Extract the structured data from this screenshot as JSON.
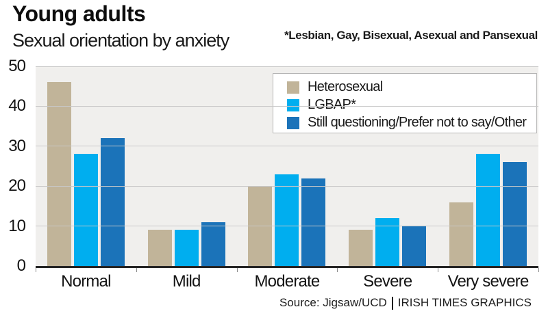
{
  "header": {
    "title": "Young adults",
    "subtitle": "Sexual orientation by anxiety",
    "note": "*Lesbian, Gay, Bisexual, Asexual and Pansexual"
  },
  "footer": {
    "source": "Source: Jigsaw/UCD",
    "credit": "IRISH TIMES GRAPHICS"
  },
  "colors": {
    "heterosexual": "#c1b499",
    "lgbap": "#00aeef",
    "questioning": "#1b73b9",
    "plot_background": "#f0efed",
    "gridline": "#c8c8c8",
    "axis_line": "#252525"
  },
  "chart_data": {
    "type": "bar",
    "title": "Young adults — Sexual orientation by anxiety",
    "categories": [
      "Normal",
      "Mild",
      "Moderate",
      "Severe",
      "Very severe"
    ],
    "series": [
      {
        "name": "Heterosexual",
        "color": "#c1b499",
        "values": [
          46,
          9,
          20,
          9,
          16
        ]
      },
      {
        "name": "LGBAP*",
        "color": "#00aeef",
        "values": [
          28,
          9,
          23,
          12,
          28
        ]
      },
      {
        "name": "Still questioning/Prefer not to say/Other",
        "color": "#1b73b9",
        "values": [
          32,
          11,
          22,
          10,
          26
        ]
      }
    ],
    "xlabel": "",
    "ylabel": "",
    "ylim": [
      0,
      50
    ],
    "yticks": [
      0,
      10,
      20,
      30,
      40,
      50
    ],
    "grid": true,
    "legend_position": "top-right"
  }
}
